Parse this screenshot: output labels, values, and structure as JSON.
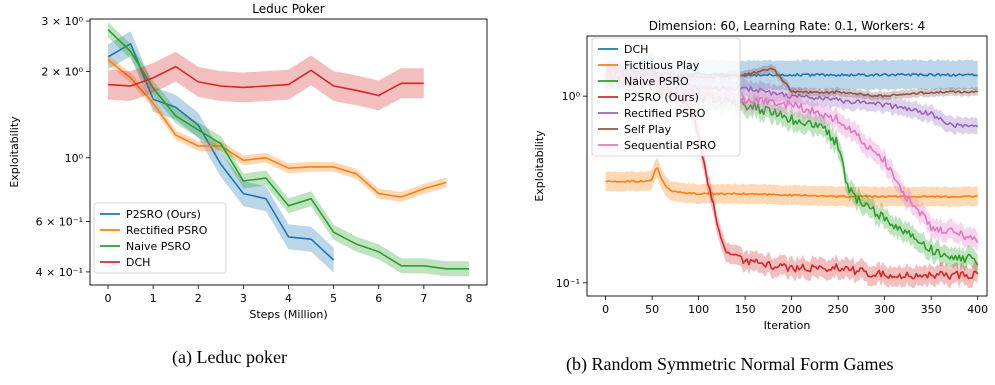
{
  "captions": {
    "a": "(a) Leduc poker",
    "b": "(b) Random Symmetric Normal Form Games"
  },
  "colors": {
    "blue": "#1f77b4",
    "orange": "#ff7f0e",
    "green": "#2ca02c",
    "red": "#d62728",
    "purple": "#9467bd",
    "brown": "#8c564b",
    "pink": "#e377c2"
  },
  "chart_data": [
    {
      "type": "line",
      "title": "Leduc Poker",
      "xlabel": "Steps (Million)",
      "ylabel": "Exploitability",
      "xlim": [
        -0.4,
        8.4
      ],
      "ylim": [
        0.36,
        3.05
      ],
      "yscale": "log",
      "xticks": [
        0,
        1,
        2,
        3,
        4,
        5,
        6,
        7,
        8
      ],
      "yticks": [
        {
          "value": 0.4,
          "label": "4 × 10⁻¹"
        },
        {
          "value": 0.6,
          "label": "6 × 10⁻¹"
        },
        {
          "value": 1.0,
          "label": "10⁰"
        },
        {
          "value": 2.0,
          "label": "2 × 10⁰"
        },
        {
          "value": 3.0,
          "label": "3 × 10⁰"
        }
      ],
      "legend_position": "lower-left",
      "series": [
        {
          "name": "P2SRO (Ours)",
          "color": "#1f77b4",
          "x": [
            0,
            0.5,
            1,
            1.5,
            2,
            2.5,
            3,
            3.5,
            4,
            4.5,
            5
          ],
          "y": [
            2.25,
            2.5,
            1.6,
            1.5,
            1.3,
            0.95,
            0.75,
            0.72,
            0.53,
            0.52,
            0.44
          ],
          "band": 0.1
        },
        {
          "name": "Rectified PSRO",
          "color": "#ff7f0e",
          "x": [
            0,
            0.5,
            1,
            1.5,
            2,
            2.5,
            3,
            3.5,
            4,
            4.5,
            5,
            5.5,
            6,
            6.5,
            7,
            7.5
          ],
          "y": [
            2.2,
            1.9,
            1.55,
            1.2,
            1.1,
            1.1,
            0.98,
            1.0,
            0.92,
            0.93,
            0.93,
            0.88,
            0.75,
            0.73,
            0.78,
            0.82
          ],
          "band": 0.04
        },
        {
          "name": "Naive PSRO",
          "color": "#2ca02c",
          "x": [
            0,
            0.5,
            1,
            1.5,
            2,
            2.5,
            3,
            3.5,
            4,
            4.5,
            5,
            5.5,
            6,
            6.5,
            7,
            7.5,
            8
          ],
          "y": [
            2.8,
            2.35,
            1.75,
            1.4,
            1.25,
            1.12,
            0.83,
            0.85,
            0.68,
            0.72,
            0.55,
            0.5,
            0.47,
            0.42,
            0.42,
            0.41,
            0.41
          ],
          "band": 0.06
        },
        {
          "name": "DCH",
          "color": "#d62728",
          "x": [
            0,
            0.5,
            1,
            1.5,
            2,
            2.5,
            3,
            3.5,
            4,
            4.5,
            5,
            5.5,
            6,
            6.5,
            7
          ],
          "y": [
            1.8,
            1.78,
            1.9,
            2.08,
            1.84,
            1.78,
            1.76,
            1.78,
            1.8,
            2.02,
            1.78,
            1.72,
            1.65,
            1.82,
            1.82
          ],
          "band": 0.12
        }
      ]
    },
    {
      "type": "line",
      "title": "Dimension: 60, Learning Rate: 0.1, Workers: 4",
      "xlabel": "Iteration",
      "ylabel": "Exploitability",
      "xlim": [
        -20,
        410
      ],
      "ylim": [
        0.085,
        2.1
      ],
      "yscale": "log",
      "xticks": [
        0,
        50,
        100,
        150,
        200,
        250,
        300,
        350,
        400
      ],
      "yticks": [
        {
          "value": 0.1,
          "label": "10⁻¹"
        },
        {
          "value": 1.0,
          "label": "10⁰"
        }
      ],
      "legend_position": "upper-left",
      "series": [
        {
          "name": "DCH",
          "color": "#1f77b4",
          "x": [
            0,
            20,
            40,
            50,
            60,
            70,
            80,
            90,
            100,
            110,
            150,
            200,
            250,
            300,
            350,
            400
          ],
          "y": [
            1.3,
            1.3,
            1.32,
            1.45,
            1.15,
            1.25,
            1.28,
            1.3,
            1.32,
            1.3,
            1.3,
            1.3,
            1.3,
            1.3,
            1.3,
            1.3
          ],
          "band": 0.18,
          "noise": 0.015
        },
        {
          "name": "Fictitious Play",
          "color": "#ff7f0e",
          "x": [
            0,
            45,
            50,
            55,
            60,
            65,
            70,
            80,
            100,
            150,
            200,
            250,
            300,
            350,
            400
          ],
          "y": [
            0.35,
            0.35,
            0.36,
            0.42,
            0.36,
            0.33,
            0.31,
            0.305,
            0.3,
            0.3,
            0.295,
            0.29,
            0.29,
            0.29,
            0.29
          ],
          "band": 0.12,
          "noise": 0.01
        },
        {
          "name": "Naive PSRO",
          "color": "#2ca02c",
          "x": [
            0,
            50,
            100,
            150,
            200,
            230,
            250,
            260,
            270,
            300,
            350,
            400
          ],
          "y": [
            1.3,
            1.2,
            1.0,
            0.9,
            0.75,
            0.7,
            0.55,
            0.32,
            0.28,
            0.22,
            0.15,
            0.13
          ],
          "band": 0.12,
          "noise": 0.06
        },
        {
          "name": "P2SRO (Ours)",
          "color": "#d62728",
          "x": [
            0,
            50,
            90,
            100,
            110,
            120,
            130,
            150,
            200,
            250,
            300,
            350,
            400
          ],
          "y": [
            1.3,
            1.2,
            0.9,
            0.6,
            0.35,
            0.2,
            0.15,
            0.13,
            0.12,
            0.12,
            0.11,
            0.11,
            0.11
          ],
          "band": 0.12,
          "noise": 0.05
        },
        {
          "name": "Rectified PSRO",
          "color": "#9467bd",
          "x": [
            0,
            50,
            100,
            150,
            200,
            250,
            300,
            350,
            370,
            400
          ],
          "y": [
            1.4,
            1.3,
            1.1,
            1.1,
            1.0,
            0.95,
            0.9,
            0.8,
            0.7,
            0.7
          ],
          "band": 0.1,
          "noise": 0.03
        },
        {
          "name": "Self Play",
          "color": "#8c564b",
          "x": [
            0,
            50,
            100,
            150,
            180,
            200,
            250,
            300,
            350,
            400
          ],
          "y": [
            1.35,
            1.35,
            1.25,
            1.3,
            1.4,
            1.05,
            1.05,
            1.0,
            1.05,
            1.05
          ],
          "band": 0.05,
          "noise": 0.015
        },
        {
          "name": "Sequential PSRO",
          "color": "#e377c2",
          "x": [
            0,
            50,
            100,
            150,
            200,
            250,
            280,
            300,
            320,
            350,
            400
          ],
          "y": [
            1.3,
            1.2,
            1.0,
            0.95,
            0.9,
            0.75,
            0.55,
            0.45,
            0.3,
            0.2,
            0.17
          ],
          "band": 0.12,
          "noise": 0.05
        }
      ]
    }
  ]
}
